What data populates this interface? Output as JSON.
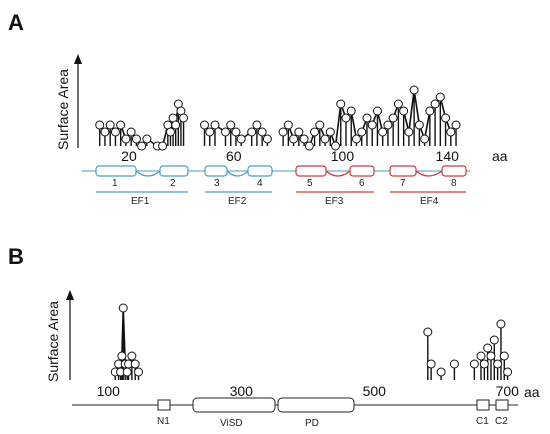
{
  "panel_a": {
    "letter": "A",
    "ylabel": "Surface Area",
    "axis_unit": "aa",
    "ticks": [
      {
        "label": "20",
        "pos": 20
      },
      {
        "label": "60",
        "pos": 60
      },
      {
        "label": "100",
        "pos": 100
      },
      {
        "label": "140",
        "pos": 140
      }
    ],
    "helix_labels": [
      "1",
      "2",
      "3",
      "4",
      "5",
      "6",
      "7",
      "8"
    ],
    "ef_hands": [
      {
        "label": "EF1",
        "color": "#4a9ec0"
      },
      {
        "label": "EF2",
        "color": "#4a9ec0"
      },
      {
        "label": "EF3",
        "color": "#d0393a"
      },
      {
        "label": "EF4",
        "color": "#d0393a"
      }
    ]
  },
  "panel_b": {
    "letter": "B",
    "ylabel": "Surface Area",
    "axis_unit": "aa",
    "ticks": [
      {
        "label": "100",
        "pos": 100
      },
      {
        "label": "300",
        "pos": 300
      },
      {
        "label": "500",
        "pos": 500
      },
      {
        "label": "700",
        "pos": 700
      }
    ],
    "domains": [
      "N1",
      "ViSD",
      "PD",
      "C1",
      "C2"
    ]
  },
  "chart_data": [
    {
      "type": "scatter",
      "title": "",
      "ylabel": "Surface Area",
      "xlabel": "aa",
      "x_ticks": [
        20,
        60,
        100,
        140
      ],
      "series": [
        {
          "x": [
            8,
            10,
            12,
            14,
            16,
            18,
            20,
            22,
            24,
            26,
            30,
            32,
            34,
            35,
            36,
            37,
            38,
            39,
            40,
            48,
            50,
            52,
            56,
            58,
            60,
            62,
            66,
            68,
            70,
            72,
            78,
            80,
            82,
            84,
            86,
            88,
            90,
            92,
            94,
            96,
            98,
            100,
            102,
            104,
            106,
            108,
            110,
            112,
            114,
            116,
            118,
            120,
            122,
            124,
            126,
            128,
            130,
            132,
            134,
            136,
            138,
            140,
            142,
            144
          ],
          "y": [
            3,
            2,
            3,
            2,
            3,
            1,
            2,
            1,
            0,
            1,
            0,
            0,
            3,
            2,
            4,
            3,
            6,
            5,
            4,
            3,
            2,
            3,
            2,
            3,
            2,
            1,
            2,
            3,
            2,
            1,
            2,
            3,
            1,
            2,
            1,
            0,
            2,
            3,
            1,
            2,
            0,
            6,
            4,
            5,
            1,
            2,
            4,
            3,
            5,
            2,
            3,
            4,
            6,
            5,
            2,
            8,
            3,
            1,
            5,
            6,
            7,
            4,
            2,
            3
          ]
        }
      ]
    },
    {
      "type": "scatter",
      "title": "",
      "ylabel": "Surface Area",
      "xlabel": "aa",
      "x_ticks": [
        100,
        300,
        500,
        700
      ],
      "series": [
        {
          "x": [
            110,
            115,
            118,
            120,
            122,
            125,
            128,
            130,
            135,
            140,
            145,
            580,
            585,
            600,
            620,
            650,
            660,
            665,
            670,
            675,
            680,
            685,
            690,
            695,
            700
          ],
          "y": [
            1,
            2,
            1,
            3,
            9,
            2,
            1,
            2,
            3,
            2,
            1,
            6,
            2,
            1,
            2,
            2,
            3,
            2,
            4,
            3,
            5,
            2,
            7,
            3,
            1
          ]
        }
      ]
    }
  ]
}
